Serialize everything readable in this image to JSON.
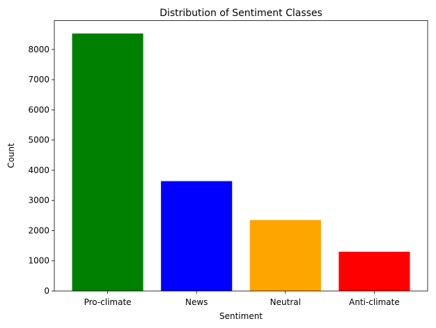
{
  "chart_data": {
    "type": "bar",
    "title": "Distribution of Sentiment Classes",
    "xlabel": "Sentiment",
    "ylabel": "Count",
    "categories": [
      "Pro-climate",
      "News",
      "Neutral",
      "Anti-climate"
    ],
    "values": [
      8530,
      3640,
      2350,
      1300
    ],
    "colors": [
      "#008000",
      "#0000ff",
      "#ffa500",
      "#ff0000"
    ],
    "yticks": [
      0,
      1000,
      2000,
      3000,
      4000,
      5000,
      6000,
      7000,
      8000
    ],
    "ylim": [
      0,
      8957
    ],
    "grid": false,
    "legend": false
  }
}
